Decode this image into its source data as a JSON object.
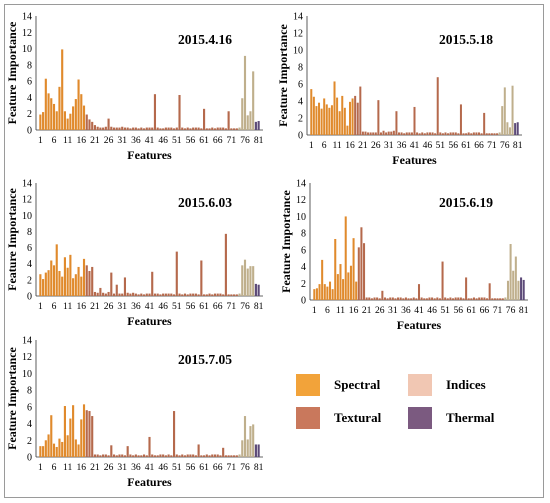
{
  "chart_data": [
    {
      "type": "bar",
      "title": "2015.4.16",
      "xlabel": "Features",
      "ylabel": "Feature Importance",
      "ylim": [
        0,
        14
      ],
      "yticks": [
        0,
        2,
        4,
        6,
        8,
        10,
        12,
        14
      ],
      "xtick_labels": [
        "1",
        "6",
        "11",
        "16",
        "21",
        "26",
        "31",
        "36",
        "41",
        "46",
        "51",
        "56",
        "61",
        "66",
        "71",
        "76",
        "81"
      ],
      "groups": [
        {
          "name": "Spectral",
          "values": [
            1.9,
            2.2,
            6.3,
            4.5,
            3.9,
            3.2,
            2.3,
            5.3,
            9.9,
            2.3,
            1.4,
            2.0,
            2.9,
            3.8,
            6.2,
            4.4,
            3.0
          ]
        },
        {
          "name": "Textural",
          "values": [
            1.9,
            1.3,
            1.0,
            0.6,
            0.4,
            0.3,
            0.3,
            0.4,
            1.4,
            0.4,
            0.3,
            0.3,
            0.3,
            0.4,
            0.3,
            0.3,
            0.2,
            0.3,
            0.3,
            0.2,
            0.3,
            0.2,
            0.3,
            0.3,
            0.3,
            4.4,
            0.3,
            0.2,
            0.2,
            0.3,
            0.3,
            0.3,
            0.2,
            0.3,
            4.3,
            0.3,
            0.2,
            0.3,
            0.2,
            0.3,
            0.3,
            0.3,
            0.2,
            2.6,
            0.2,
            0.2,
            0.3,
            0.2,
            0.3,
            0.3,
            0.3,
            0.2,
            2.3,
            0.2,
            0.2,
            0.2
          ]
        },
        {
          "name": "Indices",
          "values": [
            0.3,
            3.9,
            9.1,
            1.8,
            2.3,
            7.2
          ]
        },
        {
          "name": "Thermal",
          "values": [
            1.0,
            1.1
          ]
        }
      ]
    },
    {
      "type": "bar",
      "title": "2015.5.18",
      "xlabel": "Features",
      "ylabel": "Feature Importance",
      "ylim": [
        0,
        14
      ],
      "yticks": [
        0,
        2,
        4,
        6,
        8,
        10,
        12,
        14
      ],
      "xtick_labels": [
        "1",
        "6",
        "11",
        "16",
        "21",
        "26",
        "31",
        "36",
        "41",
        "46",
        "51",
        "56",
        "61",
        "66",
        "71",
        "76",
        "81"
      ],
      "groups": [
        {
          "name": "Spectral",
          "values": [
            5.4,
            4.5,
            3.4,
            3.8,
            3.1,
            4.3,
            3.6,
            3.2,
            3.5,
            6.3,
            4.4,
            2.8,
            4.6,
            3.2,
            1.1,
            3.9,
            4.3
          ]
        },
        {
          "name": "Textural",
          "values": [
            4.6,
            3.8,
            5.7,
            0.4,
            0.4,
            0.3,
            0.3,
            0.3,
            0.3,
            4.1,
            0.3,
            0.5,
            0.3,
            0.4,
            0.4,
            0.5,
            2.8,
            0.3,
            0.3,
            0.2,
            0.3,
            0.3,
            0.3,
            3.3,
            0.3,
            0.2,
            0.3,
            0.2,
            0.3,
            0.3,
            0.3,
            0.2,
            6.8,
            0.3,
            0.2,
            0.3,
            0.2,
            0.3,
            0.3,
            0.3,
            0.2,
            3.6,
            0.2,
            0.2,
            0.3,
            0.2,
            0.3,
            0.3,
            0.3,
            0.2,
            2.6,
            0.2,
            0.2,
            0.2,
            0.2,
            0.2
          ]
        },
        {
          "name": "Indices",
          "values": [
            0.3,
            3.4,
            5.6,
            1.5,
            0.9,
            5.8
          ]
        },
        {
          "name": "Thermal",
          "values": [
            1.4,
            1.5
          ]
        }
      ]
    },
    {
      "type": "bar",
      "title": "2015.6.03",
      "xlabel": "Features",
      "ylabel": "Feature Importance",
      "ylim": [
        0,
        14
      ],
      "yticks": [
        0,
        2,
        4,
        6,
        8,
        10,
        12,
        14
      ],
      "xtick_labels": [
        "1",
        "6",
        "11",
        "16",
        "21",
        "26",
        "31",
        "36",
        "41",
        "46",
        "51",
        "56",
        "61",
        "66",
        "71",
        "76",
        "81"
      ],
      "groups": [
        {
          "name": "Spectral",
          "values": [
            2.7,
            2.1,
            2.9,
            3.2,
            4.4,
            3.8,
            6.4,
            3.1,
            2.4,
            4.8,
            3.5,
            5.1,
            2.2,
            2.7,
            3.6,
            2.4,
            4.6
          ]
        },
        {
          "name": "Textural",
          "values": [
            3.8,
            3.1,
            3.6,
            0.5,
            0.4,
            1.0,
            0.4,
            0.3,
            0.5,
            2.9,
            0.3,
            1.4,
            0.3,
            0.3,
            2.3,
            0.4,
            0.3,
            0.4,
            0.3,
            0.2,
            0.3,
            0.2,
            0.3,
            0.3,
            3.0,
            0.3,
            0.3,
            0.2,
            0.3,
            0.3,
            0.3,
            0.3,
            0.2,
            5.5,
            0.3,
            0.2,
            0.3,
            0.2,
            0.3,
            0.3,
            0.3,
            0.2,
            4.4,
            0.2,
            0.2,
            0.3,
            0.2,
            0.3,
            0.3,
            0.3,
            0.2,
            7.7,
            0.2,
            0.2,
            0.2,
            0.2
          ]
        },
        {
          "name": "Indices",
          "values": [
            0.3,
            3.8,
            4.5,
            3.4,
            3.7,
            3.7
          ]
        },
        {
          "name": "Thermal",
          "values": [
            1.5,
            1.4
          ]
        }
      ]
    },
    {
      "type": "bar",
      "title": "2015.6.19",
      "xlabel": "Features",
      "ylabel": "Feature Importance",
      "ylim": [
        0,
        14
      ],
      "yticks": [
        0,
        2,
        4,
        6,
        8,
        10,
        12,
        14
      ],
      "xtick_labels": [
        "1",
        "6",
        "11",
        "16",
        "21",
        "26",
        "31",
        "36",
        "41",
        "46",
        "51",
        "56",
        "61",
        "66",
        "71",
        "76",
        "81"
      ],
      "groups": [
        {
          "name": "Spectral",
          "values": [
            1.3,
            1.4,
            1.9,
            4.8,
            1.9,
            1.6,
            2.2,
            1.3,
            7.3,
            3.1,
            4.3,
            2.5,
            10.0,
            3.3,
            4.1,
            7.4,
            2.2
          ]
        },
        {
          "name": "Textural",
          "values": [
            6.3,
            8.7,
            6.8,
            0.3,
            0.3,
            0.2,
            0.3,
            0.3,
            0.2,
            1.1,
            0.3,
            0.2,
            0.3,
            0.3,
            0.2,
            0.3,
            0.3,
            0.2,
            0.3,
            0.2,
            0.2,
            0.3,
            0.2,
            1.9,
            0.3,
            0.2,
            0.2,
            0.3,
            0.3,
            0.2,
            0.3,
            0.2,
            4.6,
            0.3,
            0.2,
            0.3,
            0.2,
            0.3,
            0.3,
            0.3,
            0.2,
            2.7,
            0.2,
            0.2,
            0.3,
            0.2,
            0.3,
            0.3,
            0.3,
            0.2,
            2.0,
            0.2,
            0.2,
            0.2,
            0.2,
            0.2
          ]
        },
        {
          "name": "Indices",
          "values": [
            0.3,
            2.3,
            6.7,
            3.5,
            5.2,
            2.3
          ]
        },
        {
          "name": "Thermal",
          "values": [
            2.7,
            2.4
          ]
        }
      ]
    },
    {
      "type": "bar",
      "title": "2015.7.05",
      "xlabel": "Features",
      "ylabel": "Feature Importance",
      "ylim": [
        0,
        14
      ],
      "yticks": [
        0,
        2,
        4,
        6,
        8,
        10,
        12,
        14
      ],
      "xtick_labels": [
        "1",
        "6",
        "11",
        "16",
        "21",
        "26",
        "31",
        "36",
        "41",
        "46",
        "51",
        "56",
        "61",
        "66",
        "71",
        "76",
        "81"
      ],
      "groups": [
        {
          "name": "Spectral",
          "values": [
            1.3,
            1.3,
            2.0,
            2.7,
            5.0,
            1.6,
            1.2,
            2.2,
            1.8,
            6.1,
            2.6,
            4.6,
            6.2,
            2.1,
            1.5,
            4.5,
            6.3
          ]
        },
        {
          "name": "Textural",
          "values": [
            5.6,
            5.5,
            4.9,
            0.3,
            0.3,
            0.2,
            0.3,
            0.3,
            0.2,
            1.4,
            0.3,
            0.2,
            0.3,
            0.3,
            0.2,
            1.3,
            0.3,
            0.2,
            0.3,
            0.2,
            0.2,
            0.3,
            0.2,
            2.4,
            0.3,
            0.2,
            0.2,
            0.3,
            0.3,
            0.2,
            0.3,
            0.2,
            5.5,
            0.3,
            0.2,
            0.3,
            0.2,
            0.3,
            0.3,
            0.3,
            0.2,
            1.5,
            0.2,
            0.2,
            0.3,
            0.2,
            0.3,
            0.3,
            0.3,
            0.2,
            1.1,
            0.2,
            0.2,
            0.2,
            0.2,
            0.2
          ]
        },
        {
          "name": "Indices",
          "values": [
            0.3,
            2.0,
            4.9,
            2.1,
            3.7,
            3.9
          ]
        },
        {
          "name": "Thermal",
          "values": [
            1.5,
            1.5
          ]
        }
      ]
    }
  ],
  "legend": {
    "items": [
      {
        "label": "Spectral",
        "color": "#F2A33A"
      },
      {
        "label": "Indices",
        "color": "#F1C7B3"
      },
      {
        "label": "Textural",
        "color": "#C9785C"
      },
      {
        "label": "Thermal",
        "color": "#7B5A80"
      }
    ]
  },
  "colors": {
    "Spectral_bar": "#E08A2C",
    "Textural_bar": "#B5694C",
    "Indices_bar": "#BFAF8C",
    "Thermal_bar": "#5C4A78"
  }
}
